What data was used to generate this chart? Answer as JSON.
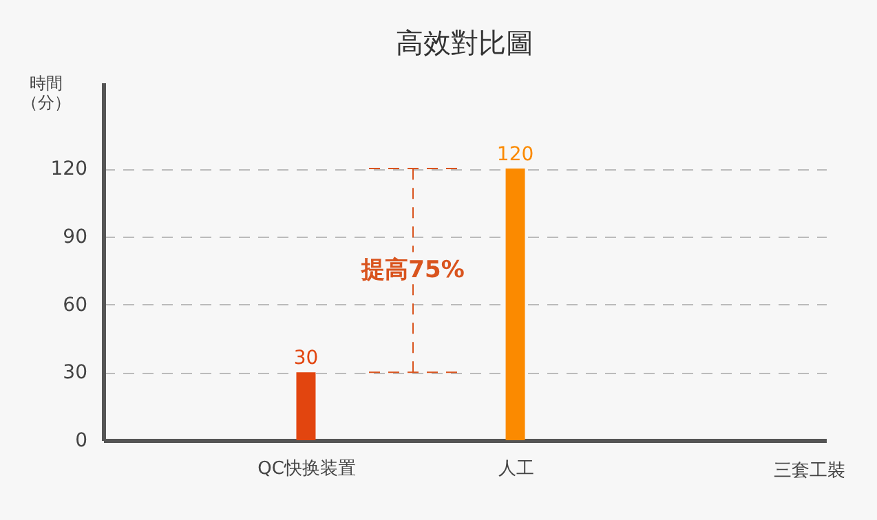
{
  "chart_data": {
    "type": "bar",
    "title": "高效對比圖",
    "ylabel": "時間（分）",
    "categories": [
      "QC快换装置",
      "人工"
    ],
    "values": [
      30,
      120
    ],
    "colors": [
      "#e2450f",
      "#fb8a00"
    ],
    "ylim": [
      0,
      158
    ],
    "yticks": [
      0,
      30,
      60,
      90,
      120
    ],
    "grid": "y",
    "data_labels": true,
    "ref_lines": [
      {
        "axis": "y",
        "value": 30,
        "color": "#d9541e",
        "line_style": "dashed"
      },
      {
        "axis": "y",
        "value": 120,
        "color": "#d9541e",
        "line_style": "dashed"
      }
    ],
    "annotations": [
      "提高75%",
      "三套工裝"
    ]
  }
}
